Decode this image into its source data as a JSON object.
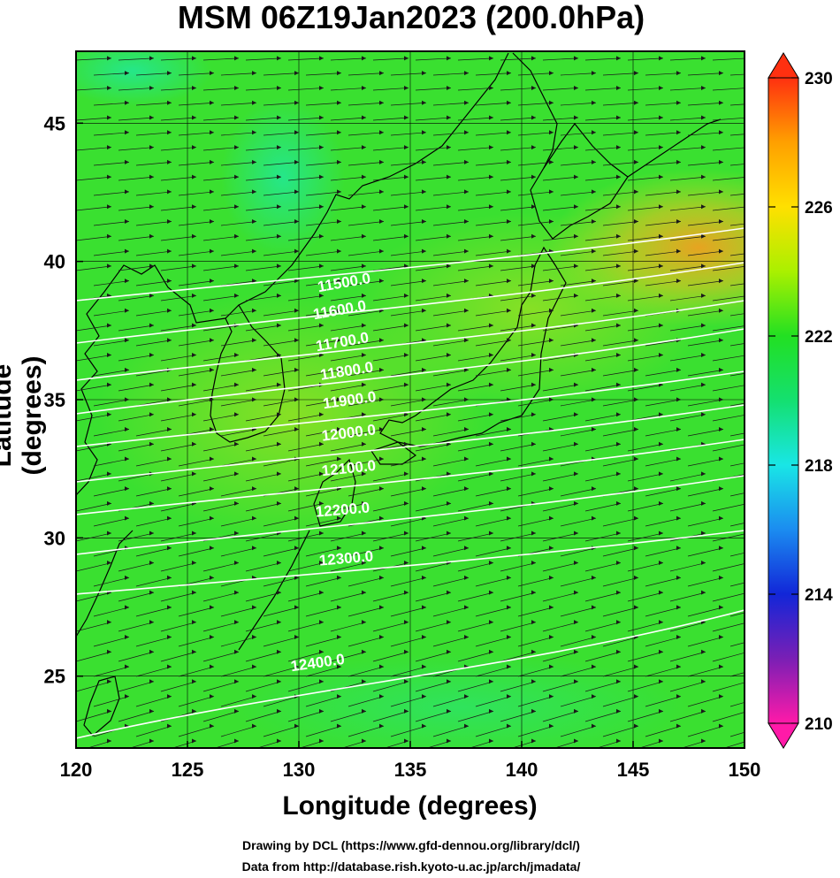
{
  "title": "MSM 06Z19Jan2023 (200.0hPa)",
  "axes": {
    "xlabel": "Longitude (degrees)",
    "ylabel": "Latitude  (degrees)",
    "x_ticks": [
      "120",
      "125",
      "130",
      "135",
      "140",
      "145",
      "150"
    ],
    "y_ticks": [
      "25",
      "30",
      "35",
      "40",
      "45"
    ],
    "xlim": [
      120,
      150
    ],
    "ylim": [
      22.4,
      47.6
    ]
  },
  "colorbar": {
    "ticks": [
      "230",
      "226",
      "222",
      "218",
      "214",
      "210"
    ],
    "range": [
      210,
      230
    ],
    "colors": [
      "#ff1aa8",
      "#7a1fb5",
      "#1226d8",
      "#1b8cf0",
      "#19e6e6",
      "#14e070",
      "#22e022",
      "#aaf000",
      "#ffe000",
      "#ffa000",
      "#ff3010"
    ]
  },
  "contours": {
    "labels": [
      "11500.0",
      "11600.0",
      "11700.0",
      "11800.0",
      "11900.0",
      "12000.0",
      "12100.0",
      "12200.0",
      "12300.0",
      "12400.0"
    ],
    "color": "#ffffff"
  },
  "credits": {
    "line1": "Drawing by DCL (https://www.gfd-dennou.org/library/dcl/)",
    "line2": "Data from http://database.rish.kyoto-u.ac.jp/arch/jmadata/"
  }
}
